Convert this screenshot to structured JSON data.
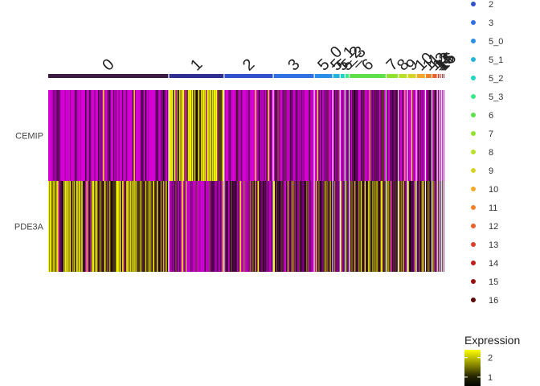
{
  "chart_data": {
    "type": "heatmap",
    "genes": [
      "CEMIP",
      "PDE3A"
    ],
    "clusters": [
      {
        "label": "0",
        "color": "#3b1b3f"
      },
      {
        "label": "1",
        "color": "#2f2f8f"
      },
      {
        "label": "2",
        "color": "#3050cc"
      },
      {
        "label": "3",
        "color": "#3070e0"
      },
      {
        "label": "5_0",
        "color": "#2a8fe6"
      },
      {
        "label": "5_1",
        "color": "#25b4d8"
      },
      {
        "label": "5_2",
        "color": "#1fd6c6"
      },
      {
        "label": "5_3",
        "color": "#3ee88a"
      },
      {
        "label": "6",
        "color": "#5ee04a"
      },
      {
        "label": "7",
        "color": "#8fe22e"
      },
      {
        "label": "8",
        "color": "#b8e02a"
      },
      {
        "label": "9",
        "color": "#d8d22a"
      },
      {
        "label": "10",
        "color": "#f0a92a"
      },
      {
        "label": "11",
        "color": "#f0822a"
      },
      {
        "label": "12",
        "color": "#e8602a"
      },
      {
        "label": "13",
        "color": "#d8402a"
      },
      {
        "label": "14",
        "color": "#c0201a"
      },
      {
        "label": "15",
        "color": "#9a1010"
      },
      {
        "label": "16",
        "color": "#5a0808"
      }
    ],
    "cluster_fractions": [
      0.295,
      0.135,
      0.12,
      0.1,
      0.045,
      0.018,
      0.012,
      0.01,
      0.09,
      0.03,
      0.022,
      0.022,
      0.022,
      0.016,
      0.013,
      0.006,
      0.004,
      0.004,
      0.004
    ],
    "expression_mean": {
      "CEMIP": [
        0.05,
        0.85,
        0.15,
        0.18,
        0.2,
        0.2,
        0.2,
        0.2,
        0.18,
        0.12,
        0.15,
        0.12,
        0.15,
        0.2,
        0.2,
        0.2,
        0.2,
        0.2,
        0.2
      ],
      "PDE3A": [
        0.78,
        0.22,
        0.35,
        0.4,
        0.55,
        0.5,
        0.5,
        0.5,
        0.68,
        0.6,
        0.55,
        0.6,
        0.5,
        0.6,
        0.55,
        0.5,
        0.5,
        0.5,
        0.5
      ]
    },
    "legend_title": "Expression",
    "colorbar": {
      "ticks": [
        "2",
        "1"
      ],
      "tick_values": [
        2,
        1
      ],
      "range": [
        0.5,
        2.4
      ],
      "colors": [
        "#000000",
        "#1a1a00",
        "#5a5a00",
        "#a8a800",
        "#ffff00"
      ]
    },
    "cluster_legend_visible": [
      "2",
      "3",
      "5_0",
      "5_1",
      "5_2",
      "5_3",
      "6",
      "7",
      "8",
      "9",
      "10",
      "11",
      "12",
      "13",
      "14",
      "15",
      "16"
    ],
    "low_color": "#d400d4",
    "mid_color": "#160016",
    "high_color": "#ffff00"
  }
}
